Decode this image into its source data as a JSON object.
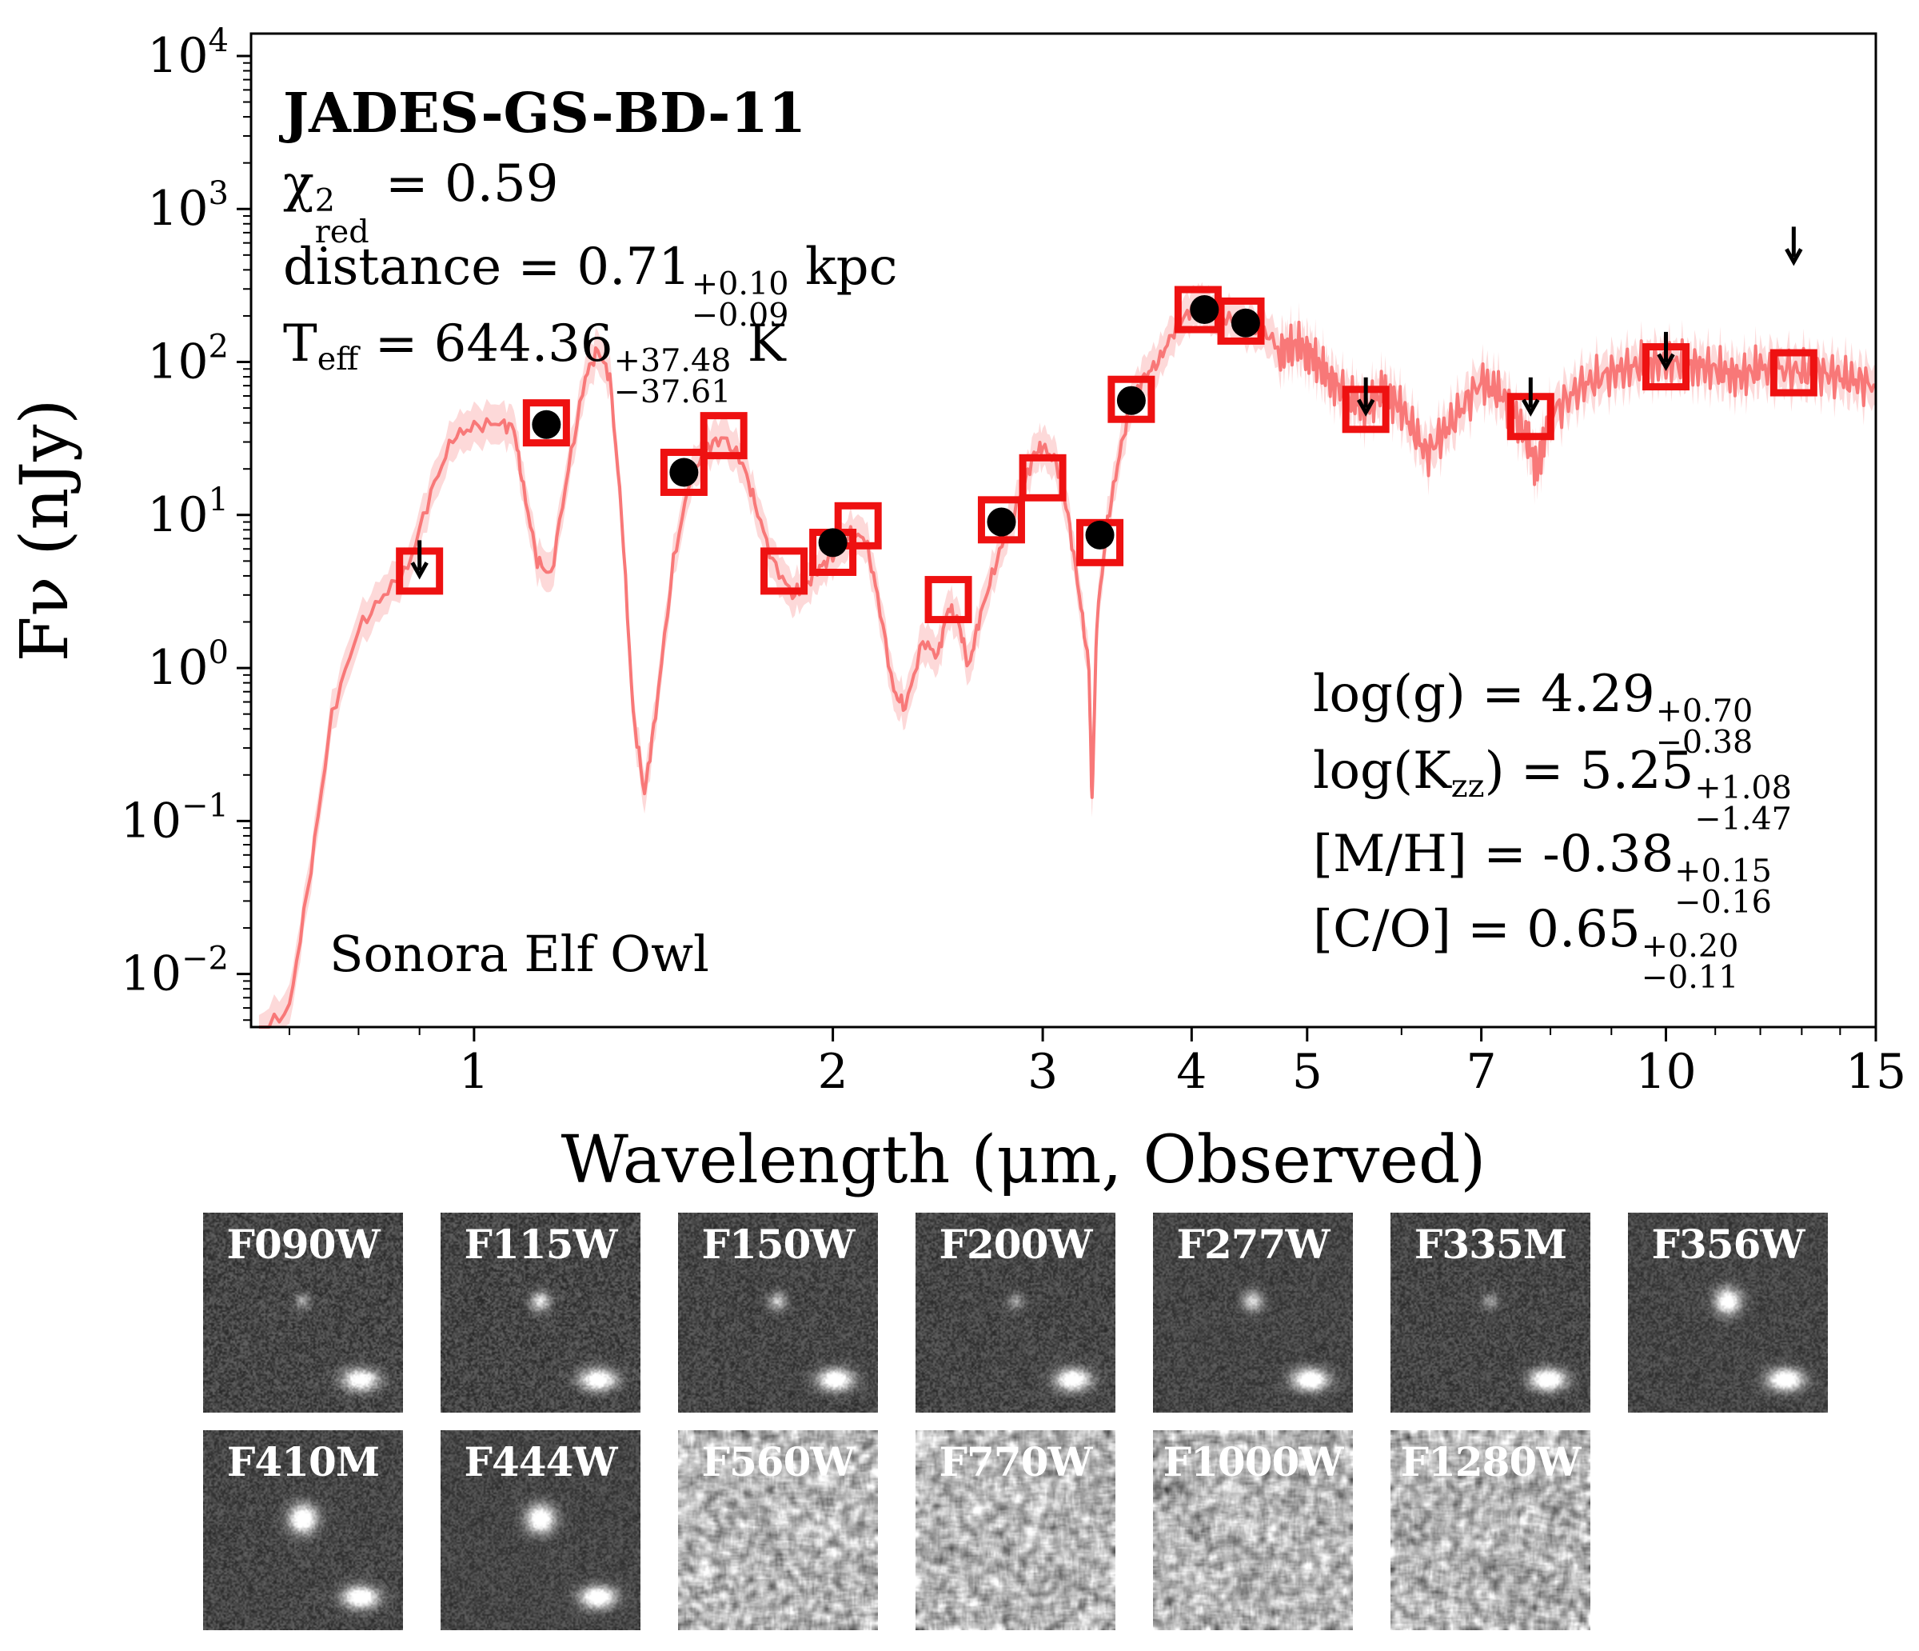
{
  "chart_data": {
    "type": "scatter",
    "xlabel": "Wavelength (μm, Observed)",
    "ylabel": "Fν (nJy)",
    "xscale": "log",
    "yscale": "log",
    "xlim": [
      0.65,
      15
    ],
    "ylim": [
      0.0045,
      14000
    ],
    "xticks": [
      1,
      2,
      3,
      4,
      5,
      7,
      10,
      15
    ],
    "yticks": [
      {
        "value": 0.01,
        "base": "10",
        "exp": "−2"
      },
      {
        "value": 0.1,
        "base": "10",
        "exp": "−1"
      },
      {
        "value": 1,
        "base": "10",
        "exp": "0"
      },
      {
        "value": 10,
        "base": "10",
        "exp": "1"
      },
      {
        "value": 100,
        "base": "10",
        "exp": "2"
      },
      {
        "value": 1000,
        "base": "10",
        "exp": "3"
      },
      {
        "value": 10000,
        "base": "10",
        "exp": "4"
      }
    ],
    "model_name": "Sonora Elf Owl",
    "model_color": "#f87878",
    "observed_color": "#000000",
    "model_photometry_color": "#ee1111",
    "observed": [
      {
        "filter": "F115W",
        "x": 1.15,
        "y": 39
      },
      {
        "filter": "F150W",
        "x": 1.5,
        "y": 19
      },
      {
        "filter": "F200W",
        "x": 2.0,
        "y": 6.6
      },
      {
        "filter": "F277W",
        "x": 2.77,
        "y": 9.0
      },
      {
        "filter": "F335M",
        "x": 3.35,
        "y": 7.4
      },
      {
        "filter": "F356W",
        "x": 3.56,
        "y": 56
      },
      {
        "filter": "F410M",
        "x": 4.1,
        "y": 220
      },
      {
        "filter": "F444W",
        "x": 4.44,
        "y": 180
      }
    ],
    "upper_limits": [
      {
        "filter": "F090W",
        "x": 0.9,
        "y": 5.0
      },
      {
        "filter": "F560W",
        "x": 5.6,
        "y": 58
      },
      {
        "filter": "F770W",
        "x": 7.7,
        "y": 58
      },
      {
        "filter": "F1000W",
        "x": 10.0,
        "y": 115
      },
      {
        "filter": "F1280W",
        "x": 12.8,
        "y": 560
      }
    ],
    "model_photometry": [
      {
        "x": 0.9,
        "y": 4.3
      },
      {
        "x": 1.15,
        "y": 40
      },
      {
        "x": 1.5,
        "y": 19
      },
      {
        "x": 1.62,
        "y": 33
      },
      {
        "x": 1.82,
        "y": 4.3
      },
      {
        "x": 2.0,
        "y": 5.7
      },
      {
        "x": 2.1,
        "y": 8.5
      },
      {
        "x": 2.5,
        "y": 2.8
      },
      {
        "x": 2.77,
        "y": 9.3
      },
      {
        "x": 3.0,
        "y": 17.5
      },
      {
        "x": 3.35,
        "y": 6.6
      },
      {
        "x": 3.56,
        "y": 57
      },
      {
        "x": 4.05,
        "y": 220
      },
      {
        "x": 4.4,
        "y": 185
      },
      {
        "x": 5.6,
        "y": 49
      },
      {
        "x": 7.7,
        "y": 44
      },
      {
        "x": 10.0,
        "y": 93
      },
      {
        "x": 12.8,
        "y": 85
      }
    ],
    "model_spectrum": [
      [
        0.66,
        0.004
      ],
      [
        0.7,
        0.006
      ],
      [
        0.73,
        0.05
      ],
      [
        0.76,
        0.5
      ],
      [
        0.8,
        1.8
      ],
      [
        0.84,
        3.0
      ],
      [
        0.88,
        4.5
      ],
      [
        0.92,
        14
      ],
      [
        0.96,
        32
      ],
      [
        1.0,
        38
      ],
      [
        1.05,
        40
      ],
      [
        1.08,
        37
      ],
      [
        1.1,
        15
      ],
      [
        1.13,
        5
      ],
      [
        1.16,
        4
      ],
      [
        1.2,
        20
      ],
      [
        1.24,
        80
      ],
      [
        1.27,
        120
      ],
      [
        1.3,
        80
      ],
      [
        1.33,
        10
      ],
      [
        1.36,
        0.5
      ],
      [
        1.39,
        0.15
      ],
      [
        1.42,
        0.5
      ],
      [
        1.47,
        5
      ],
      [
        1.52,
        18
      ],
      [
        1.57,
        28
      ],
      [
        1.62,
        32
      ],
      [
        1.68,
        22
      ],
      [
        1.72,
        12
      ],
      [
        1.78,
        5
      ],
      [
        1.85,
        3
      ],
      [
        1.9,
        3.5
      ],
      [
        1.95,
        4.5
      ],
      [
        2.0,
        5.5
      ],
      [
        2.07,
        7.5
      ],
      [
        2.13,
        7.0
      ],
      [
        2.18,
        3
      ],
      [
        2.25,
        0.7
      ],
      [
        2.3,
        0.55
      ],
      [
        2.38,
        1.5
      ],
      [
        2.45,
        1.2
      ],
      [
        2.5,
        2.5
      ],
      [
        2.55,
        2.0
      ],
      [
        2.6,
        1.0
      ],
      [
        2.65,
        2
      ],
      [
        2.72,
        4
      ],
      [
        2.8,
        8
      ],
      [
        2.88,
        14
      ],
      [
        2.95,
        25
      ],
      [
        3.0,
        28
      ],
      [
        3.08,
        22
      ],
      [
        3.15,
        10
      ],
      [
        3.22,
        3
      ],
      [
        3.28,
        1
      ],
      [
        3.3,
        0.13
      ],
      [
        3.33,
        2
      ],
      [
        3.4,
        9
      ],
      [
        3.48,
        25
      ],
      [
        3.56,
        55
      ],
      [
        3.65,
        80
      ],
      [
        3.75,
        100
      ],
      [
        3.85,
        150
      ],
      [
        3.95,
        200
      ],
      [
        4.05,
        240
      ],
      [
        4.15,
        210
      ],
      [
        4.3,
        190
      ],
      [
        4.45,
        170
      ],
      [
        4.6,
        160
      ],
      [
        4.75,
        120
      ],
      [
        4.9,
        130
      ],
      [
        5.05,
        110
      ],
      [
        5.2,
        80
      ],
      [
        5.4,
        60
      ],
      [
        5.6,
        50
      ],
      [
        5.8,
        65
      ],
      [
        6.0,
        50
      ],
      [
        6.3,
        25
      ],
      [
        6.6,
        40
      ],
      [
        7.0,
        75
      ],
      [
        7.3,
        60
      ],
      [
        7.6,
        35
      ],
      [
        7.8,
        20
      ],
      [
        8.0,
        45
      ],
      [
        8.5,
        70
      ],
      [
        9.0,
        85
      ],
      [
        9.5,
        95
      ],
      [
        10.0,
        100
      ],
      [
        10.5,
        95
      ],
      [
        11.0,
        90
      ],
      [
        11.5,
        80
      ],
      [
        12.0,
        92
      ],
      [
        12.8,
        88
      ],
      [
        13.5,
        85
      ],
      [
        14.2,
        78
      ],
      [
        15.0,
        70
      ]
    ]
  },
  "annotations": {
    "object_name": "JADES-GS-BD-11",
    "chi2_prefix": "χ",
    "chi2_sup": "2",
    "chi2_sub": "red",
    "chi2_value": " = 0.59",
    "distance_label": "distance = 0.71",
    "distance_sup": "+0.10",
    "distance_sub": "−0.09",
    "distance_unit": " kpc",
    "teff_label": "T",
    "teff_sub": "eff",
    "teff_value": " = 644.36",
    "teff_sup": "+37.48",
    "teff_sub2": "−37.61",
    "teff_unit": " K",
    "model_label": "Sonora Elf Owl",
    "logg_label": "log(g) = 4.29",
    "logg_sup": "+0.70",
    "logg_sub": "−0.38",
    "logkzz_label": "log(K",
    "logkzz_sub": "zz",
    "logkzz_value": ") = 5.25",
    "logkzz_sup": "+1.08",
    "logkzz_sub2": "−1.47",
    "mh_label": "[M/H] = -0.38",
    "mh_sup": "+0.15",
    "mh_sub": "−0.16",
    "co_label": "[C/O] = 0.65",
    "co_sup": "+0.20",
    "co_sub": "−0.11"
  },
  "cutouts": [
    {
      "filter": "F090W",
      "row": 0,
      "col": 0,
      "source": 0.35,
      "companion": 0.9,
      "noise": 0.55
    },
    {
      "filter": "F115W",
      "row": 0,
      "col": 1,
      "source": 0.6,
      "companion": 0.95,
      "noise": 0.55
    },
    {
      "filter": "F150W",
      "row": 0,
      "col": 2,
      "source": 0.5,
      "companion": 0.95,
      "noise": 0.5
    },
    {
      "filter": "F200W",
      "row": 0,
      "col": 3,
      "source": 0.35,
      "companion": 0.95,
      "noise": 0.5
    },
    {
      "filter": "F277W",
      "row": 0,
      "col": 4,
      "source": 0.6,
      "companion": 1.0,
      "noise": 0.45
    },
    {
      "filter": "F335M",
      "row": 0,
      "col": 5,
      "source": 0.35,
      "companion": 1.0,
      "noise": 0.5
    },
    {
      "filter": "F356W",
      "row": 0,
      "col": 6,
      "source": 0.9,
      "companion": 1.0,
      "noise": 0.45
    },
    {
      "filter": "F410M",
      "row": 1,
      "col": 0,
      "source": 1.0,
      "companion": 1.0,
      "noise": 0.5
    },
    {
      "filter": "F444W",
      "row": 1,
      "col": 1,
      "source": 1.0,
      "companion": 1.0,
      "noise": 0.45
    },
    {
      "filter": "F560W",
      "row": 1,
      "col": 2,
      "source": 0,
      "companion": 0,
      "noise": 1.0
    },
    {
      "filter": "F770W",
      "row": 1,
      "col": 3,
      "source": 0,
      "companion": 0,
      "noise": 1.0
    },
    {
      "filter": "F1000W",
      "row": 1,
      "col": 4,
      "source": 0,
      "companion": 0,
      "noise": 1.0
    },
    {
      "filter": "F1280W",
      "row": 1,
      "col": 5,
      "source": 0,
      "companion": 0,
      "noise": 1.0
    }
  ]
}
